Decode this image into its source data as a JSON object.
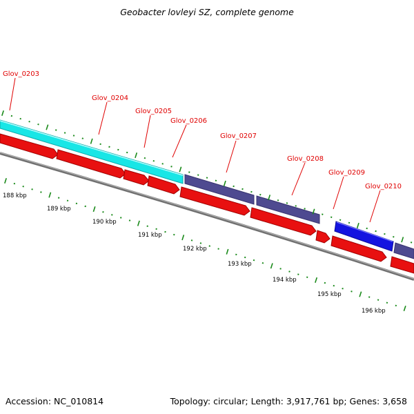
{
  "title": "Geobacter lovleyi SZ, complete genome",
  "footer": {
    "accession": "Accession: NC_010814",
    "summary": "Topology: circular; Length: 3,917,761 bp; Genes: 3,658"
  },
  "colors": {
    "forward_track": "#18e6e6",
    "track_purple": "#4e4a90",
    "track_blue": "#1414e0",
    "reverse_cds": "#e81010",
    "backbone": "#808080",
    "ticks": "#1a8a1a",
    "gene_label": "#e00000"
  },
  "genes": [
    {
      "label": "Glov_0203",
      "color": "forward_track"
    },
    {
      "label": "Glov_0204",
      "color": "forward_track"
    },
    {
      "label": "Glov_0205",
      "color": "forward_track"
    },
    {
      "label": "Glov_0206",
      "color": "forward_track"
    },
    {
      "label": "Glov_0207",
      "color": "track_purple"
    },
    {
      "label": "Glov_0208",
      "color": "track_purple"
    },
    {
      "label": "Glov_0209",
      "color": "track_purple"
    },
    {
      "label": "Glov_0210",
      "color": "track_blue"
    }
  ],
  "kbp_ticks": [
    "188 kbp",
    "189 kbp",
    "190 kbp",
    "191 kbp",
    "192 kbp",
    "193 kbp",
    "194 kbp",
    "195 kbp",
    "196 kbp"
  ]
}
